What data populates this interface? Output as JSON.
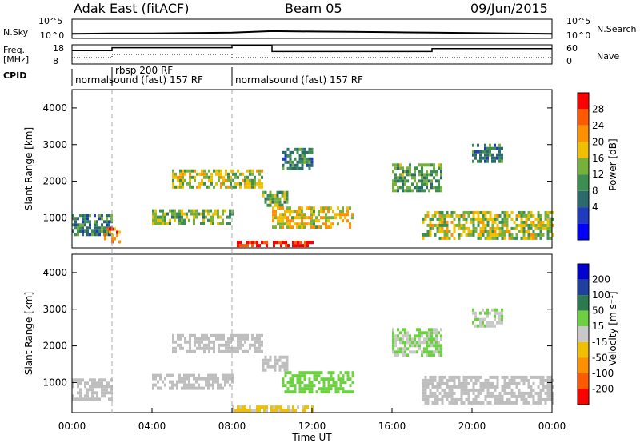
{
  "header": {
    "radar": "Adak East (fitACF)",
    "beam": "Beam 05",
    "date": "09/Jun/2015"
  },
  "strip_labels": {
    "nsky": "N.Sky",
    "nsky_ticks": [
      "10^5",
      "10^0"
    ],
    "nsearch": "N.Search",
    "nsearch_ticks": [
      "10^5",
      "10^0"
    ],
    "freq": "Freq.",
    "freq_unit": "[MHz]",
    "freq_ticks": [
      "18",
      "8"
    ],
    "nave": "Nave",
    "nave_ticks": [
      "60",
      "0"
    ],
    "cpid": "CPID",
    "cpid_entries": [
      "normalsound (fast) 157 RF",
      "rbsp 200 RF",
      "normalsound (fast) 157 RF"
    ]
  },
  "axes": {
    "ylabel": "Slant Range [km]",
    "xlabel": "Time UT",
    "y_ticks": [
      "1000",
      "2000",
      "3000",
      "4000"
    ],
    "x_ticks": [
      "00:00",
      "04:00",
      "08:00",
      "12:00",
      "16:00",
      "20:00",
      "00:00"
    ]
  },
  "power_scale": {
    "label": "Power [dB]",
    "ticks": [
      "4",
      "8",
      "12",
      "16",
      "20",
      "24",
      "28"
    ]
  },
  "velocity_scale": {
    "label": "Velocity [m s⁻¹]",
    "ticks": [
      "200",
      "100",
      "50",
      "15",
      "-15",
      "-50",
      "-100",
      "-200"
    ]
  },
  "colors": {
    "power": [
      "#0000ff",
      "#1f3cc0",
      "#2c6a6e",
      "#3c8f50",
      "#78b03c",
      "#f0c000",
      "#ff9000",
      "#ff5a00",
      "#ff0000"
    ],
    "velocity": [
      "#0000d0",
      "#2040a0",
      "#2c7a50",
      "#6cd040",
      "#c8c8c8",
      "#f0c000",
      "#ff9000",
      "#ff5a00",
      "#ff0000"
    ],
    "ground_scatter": "#bebebe"
  },
  "chart_data": [
    {
      "type": "line",
      "name": "N.Sky",
      "x_hours": [
        0,
        2,
        4,
        6,
        8,
        10,
        12,
        14,
        16,
        18,
        20,
        22,
        24
      ],
      "y_log10": [
        1.2,
        1.3,
        1.3,
        1.4,
        1.5,
        1.9,
        1.8,
        1.7,
        1.6,
        1.5,
        1.4,
        1.3,
        1.2
      ]
    },
    {
      "type": "line",
      "name": "Freq.",
      "unit": "MHz",
      "ylim": [
        8,
        18
      ],
      "x_hours": [
        0,
        2.0,
        2.0,
        8.0,
        8.0,
        10.0,
        10.0,
        18.0,
        18.0,
        24
      ],
      "values": [
        15,
        15,
        16.5,
        16.5,
        17.5,
        17.5,
        14.5,
        14.5,
        16,
        16
      ]
    },
    {
      "type": "line",
      "name": "Nave",
      "ylim": [
        0,
        60
      ],
      "x_hours": [
        0,
        2.0,
        2.0,
        8.0,
        8.0,
        24
      ],
      "values": [
        20,
        20,
        30,
        30,
        20,
        20
      ]
    },
    {
      "type": "heatmap",
      "name": "Power",
      "unit": "dB",
      "xlim_hours": [
        0,
        24
      ],
      "ylim_km": [
        180,
        4500
      ],
      "clim": [
        0,
        30
      ],
      "regions": [
        {
          "t": [
            0.0,
            2.0
          ],
          "r": [
            500,
            1100
          ],
          "p": 10
        },
        {
          "t": [
            1.6,
            2.4
          ],
          "r": [
            300,
            700
          ],
          "p": 22
        },
        {
          "t": [
            4.0,
            8.0
          ],
          "r": [
            800,
            1200
          ],
          "p": 14
        },
        {
          "t": [
            5.0,
            9.5
          ],
          "r": [
            1800,
            2300
          ],
          "p": 16
        },
        {
          "t": [
            8.0,
            12.0
          ],
          "r": [
            200,
            320
          ],
          "p": 28
        },
        {
          "t": [
            9.5,
            10.8
          ],
          "r": [
            1300,
            1700
          ],
          "p": 14
        },
        {
          "t": [
            10.0,
            14.0
          ],
          "r": [
            700,
            1300
          ],
          "p": 18
        },
        {
          "t": [
            10.5,
            12.0
          ],
          "r": [
            2300,
            2900
          ],
          "p": 10
        },
        {
          "t": [
            16.0,
            18.5
          ],
          "r": [
            1700,
            2400
          ],
          "p": 12
        },
        {
          "t": [
            17.5,
            24.0
          ],
          "r": [
            400,
            1100
          ],
          "p": 16
        },
        {
          "t": [
            20.0,
            21.5
          ],
          "r": [
            2500,
            3000
          ],
          "p": 10
        }
      ]
    },
    {
      "type": "heatmap",
      "name": "Velocity",
      "unit": "m s⁻¹",
      "xlim_hours": [
        0,
        24
      ],
      "ylim_km": [
        180,
        4500
      ],
      "clim": [
        -200,
        200
      ],
      "regions": [
        {
          "t": [
            0.0,
            2.0
          ],
          "r": [
            500,
            1100
          ],
          "v": 0,
          "gs": true
        },
        {
          "t": [
            4.0,
            8.0
          ],
          "r": [
            800,
            1200
          ],
          "v": 0,
          "gs": true
        },
        {
          "t": [
            5.0,
            9.5
          ],
          "r": [
            1800,
            2300
          ],
          "v": 0,
          "gs": true
        },
        {
          "t": [
            8.0,
            12.0
          ],
          "r": [
            200,
            320
          ],
          "v": -20
        },
        {
          "t": [
            10.5,
            14.0
          ],
          "r": [
            700,
            1300
          ],
          "v": 30
        },
        {
          "t": [
            9.5,
            10.8
          ],
          "r": [
            1300,
            1700
          ],
          "v": 0,
          "gs": true
        },
        {
          "t": [
            16.0,
            18.5
          ],
          "r": [
            1700,
            2400
          ],
          "v": 20
        },
        {
          "t": [
            17.5,
            24.0
          ],
          "r": [
            400,
            1100
          ],
          "v": 0,
          "gs": true
        },
        {
          "t": [
            20.0,
            21.5
          ],
          "r": [
            2500,
            3000
          ],
          "v": 10
        }
      ]
    }
  ]
}
